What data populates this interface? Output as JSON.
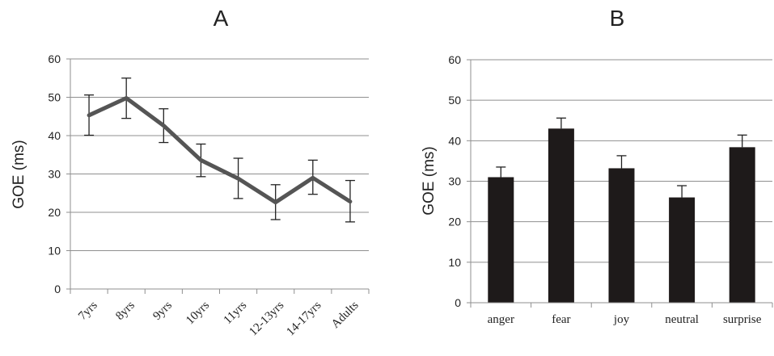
{
  "chart_data": [
    {
      "panel_label": "A",
      "type": "line",
      "ylabel": "GOE (ms)",
      "xlabel": "",
      "ylim": [
        0,
        60
      ],
      "yticks": [
        "0",
        "10",
        "20",
        "30",
        "40",
        "50",
        "60"
      ],
      "grid": true,
      "categories": [
        "7yrs",
        "8yrs",
        "9yrs",
        "10yrs",
        "11yrs",
        "12-13yrs",
        "14-17yrs",
        "Adults"
      ],
      "values": [
        45.3,
        49.8,
        42.6,
        33.6,
        28.8,
        22.6,
        29.0,
        22.8
      ],
      "error_low": [
        40.1,
        44.5,
        38.2,
        29.3,
        23.6,
        18.1,
        24.7,
        17.5
      ],
      "error_high": [
        50.6,
        55.0,
        47.0,
        37.8,
        34.1,
        27.2,
        33.6,
        28.3
      ],
      "line_color": "#555555"
    },
    {
      "panel_label": "B",
      "type": "bar",
      "ylabel": "GOE (ms)",
      "xlabel": "",
      "ylim": [
        0,
        60
      ],
      "yticks": [
        "0",
        "10",
        "20",
        "30",
        "40",
        "50",
        "60"
      ],
      "grid": true,
      "categories": [
        "anger",
        "fear",
        "joy",
        "neutral",
        "surprise"
      ],
      "values": [
        31.0,
        43.0,
        33.2,
        26.0,
        38.4
      ],
      "error_high": [
        33.5,
        45.6,
        36.3,
        28.9,
        41.4
      ],
      "bar_color": "#1e1a1a"
    }
  ]
}
